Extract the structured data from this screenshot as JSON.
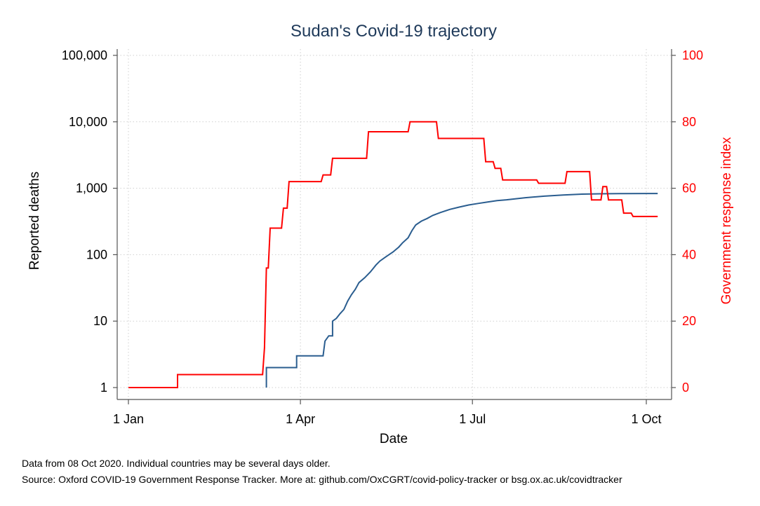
{
  "chart_data": {
    "type": "line",
    "title": "Sudan's Covid-19 trajectory",
    "xlabel": "Date",
    "ylabel_left": "Reported deaths",
    "ylabel_right": "Government response index",
    "left_axis": {
      "scale": "log",
      "ylim": [
        1,
        100000
      ],
      "ticks": [
        1,
        10,
        100,
        1000,
        10000,
        100000
      ],
      "tick_labels": [
        "1",
        "10",
        "100",
        "1,000",
        "10,000",
        "100,000"
      ]
    },
    "right_axis": {
      "scale": "linear",
      "ylim": [
        0,
        100
      ],
      "ticks": [
        0,
        20,
        40,
        60,
        80,
        100
      ],
      "tick_labels": [
        "0",
        "20",
        "40",
        "60",
        "80",
        "100"
      ],
      "color": "#ff0000"
    },
    "x_axis": {
      "unit": "day of 2020 (0 = 1 Jan)",
      "xlim": [
        0,
        282
      ],
      "ticks": [
        0,
        91,
        182,
        274
      ],
      "tick_labels": [
        "1 Jan",
        "1 Apr",
        "1 Jul",
        "1 Oct"
      ]
    },
    "grid": true,
    "series": [
      {
        "name": "Reported deaths",
        "axis": "left",
        "color": "#2a5d8f",
        "points": [
          [
            73,
            1
          ],
          [
            73,
            2
          ],
          [
            89,
            2
          ],
          [
            89,
            3
          ],
          [
            103,
            3
          ],
          [
            104,
            5
          ],
          [
            106,
            6
          ],
          [
            108,
            6
          ],
          [
            108,
            10
          ],
          [
            110,
            11
          ],
          [
            112,
            13
          ],
          [
            114,
            15
          ],
          [
            116,
            20
          ],
          [
            118,
            25
          ],
          [
            120,
            30
          ],
          [
            122,
            38
          ],
          [
            125,
            45
          ],
          [
            128,
            55
          ],
          [
            131,
            70
          ],
          [
            133,
            80
          ],
          [
            136,
            92
          ],
          [
            140,
            110
          ],
          [
            143,
            130
          ],
          [
            145,
            150
          ],
          [
            148,
            180
          ],
          [
            150,
            230
          ],
          [
            152,
            280
          ],
          [
            155,
            320
          ],
          [
            158,
            350
          ],
          [
            161,
            390
          ],
          [
            165,
            430
          ],
          [
            170,
            480
          ],
          [
            175,
            520
          ],
          [
            180,
            560
          ],
          [
            185,
            590
          ],
          [
            190,
            620
          ],
          [
            195,
            650
          ],
          [
            200,
            670
          ],
          [
            210,
            720
          ],
          [
            220,
            760
          ],
          [
            230,
            790
          ],
          [
            240,
            815
          ],
          [
            250,
            825
          ],
          [
            260,
            830
          ],
          [
            275,
            833
          ],
          [
            280,
            833
          ]
        ]
      },
      {
        "name": "Government response index",
        "axis": "right",
        "color": "#ff0000",
        "points": [
          [
            0,
            0
          ],
          [
            26,
            0
          ],
          [
            26,
            3.9
          ],
          [
            71,
            3.9
          ],
          [
            72,
            12
          ],
          [
            73,
            36
          ],
          [
            74,
            36
          ],
          [
            75,
            48
          ],
          [
            81,
            48
          ],
          [
            82,
            54
          ],
          [
            84,
            54
          ],
          [
            85,
            62
          ],
          [
            102,
            62
          ],
          [
            103,
            64
          ],
          [
            107,
            64
          ],
          [
            108,
            69
          ],
          [
            126,
            69
          ],
          [
            127,
            77
          ],
          [
            148,
            77
          ],
          [
            149,
            80
          ],
          [
            163,
            80
          ],
          [
            164,
            75
          ],
          [
            188,
            75
          ],
          [
            189,
            68
          ],
          [
            193,
            68
          ],
          [
            194,
            66
          ],
          [
            197,
            66
          ],
          [
            198,
            62.5
          ],
          [
            216,
            62.5
          ],
          [
            217,
            61.5
          ],
          [
            231,
            61.5
          ],
          [
            232,
            65
          ],
          [
            244,
            65
          ],
          [
            245,
            56.5
          ],
          [
            250,
            56.5
          ],
          [
            251,
            60.5
          ],
          [
            253,
            60.5
          ],
          [
            254,
            56.5
          ],
          [
            261,
            56.5
          ],
          [
            262,
            52.5
          ],
          [
            266,
            52.5
          ],
          [
            267,
            51.5
          ],
          [
            280,
            51.5
          ]
        ]
      }
    ]
  },
  "notes": [
    "Data from 08 Oct 2020. Individual countries may be several days older.",
    "Source: Oxford COVID-19 Government Response Tracker. More at: github.com/OxCGRT/covid-policy-tracker or bsg.ox.ac.uk/covidtracker"
  ]
}
